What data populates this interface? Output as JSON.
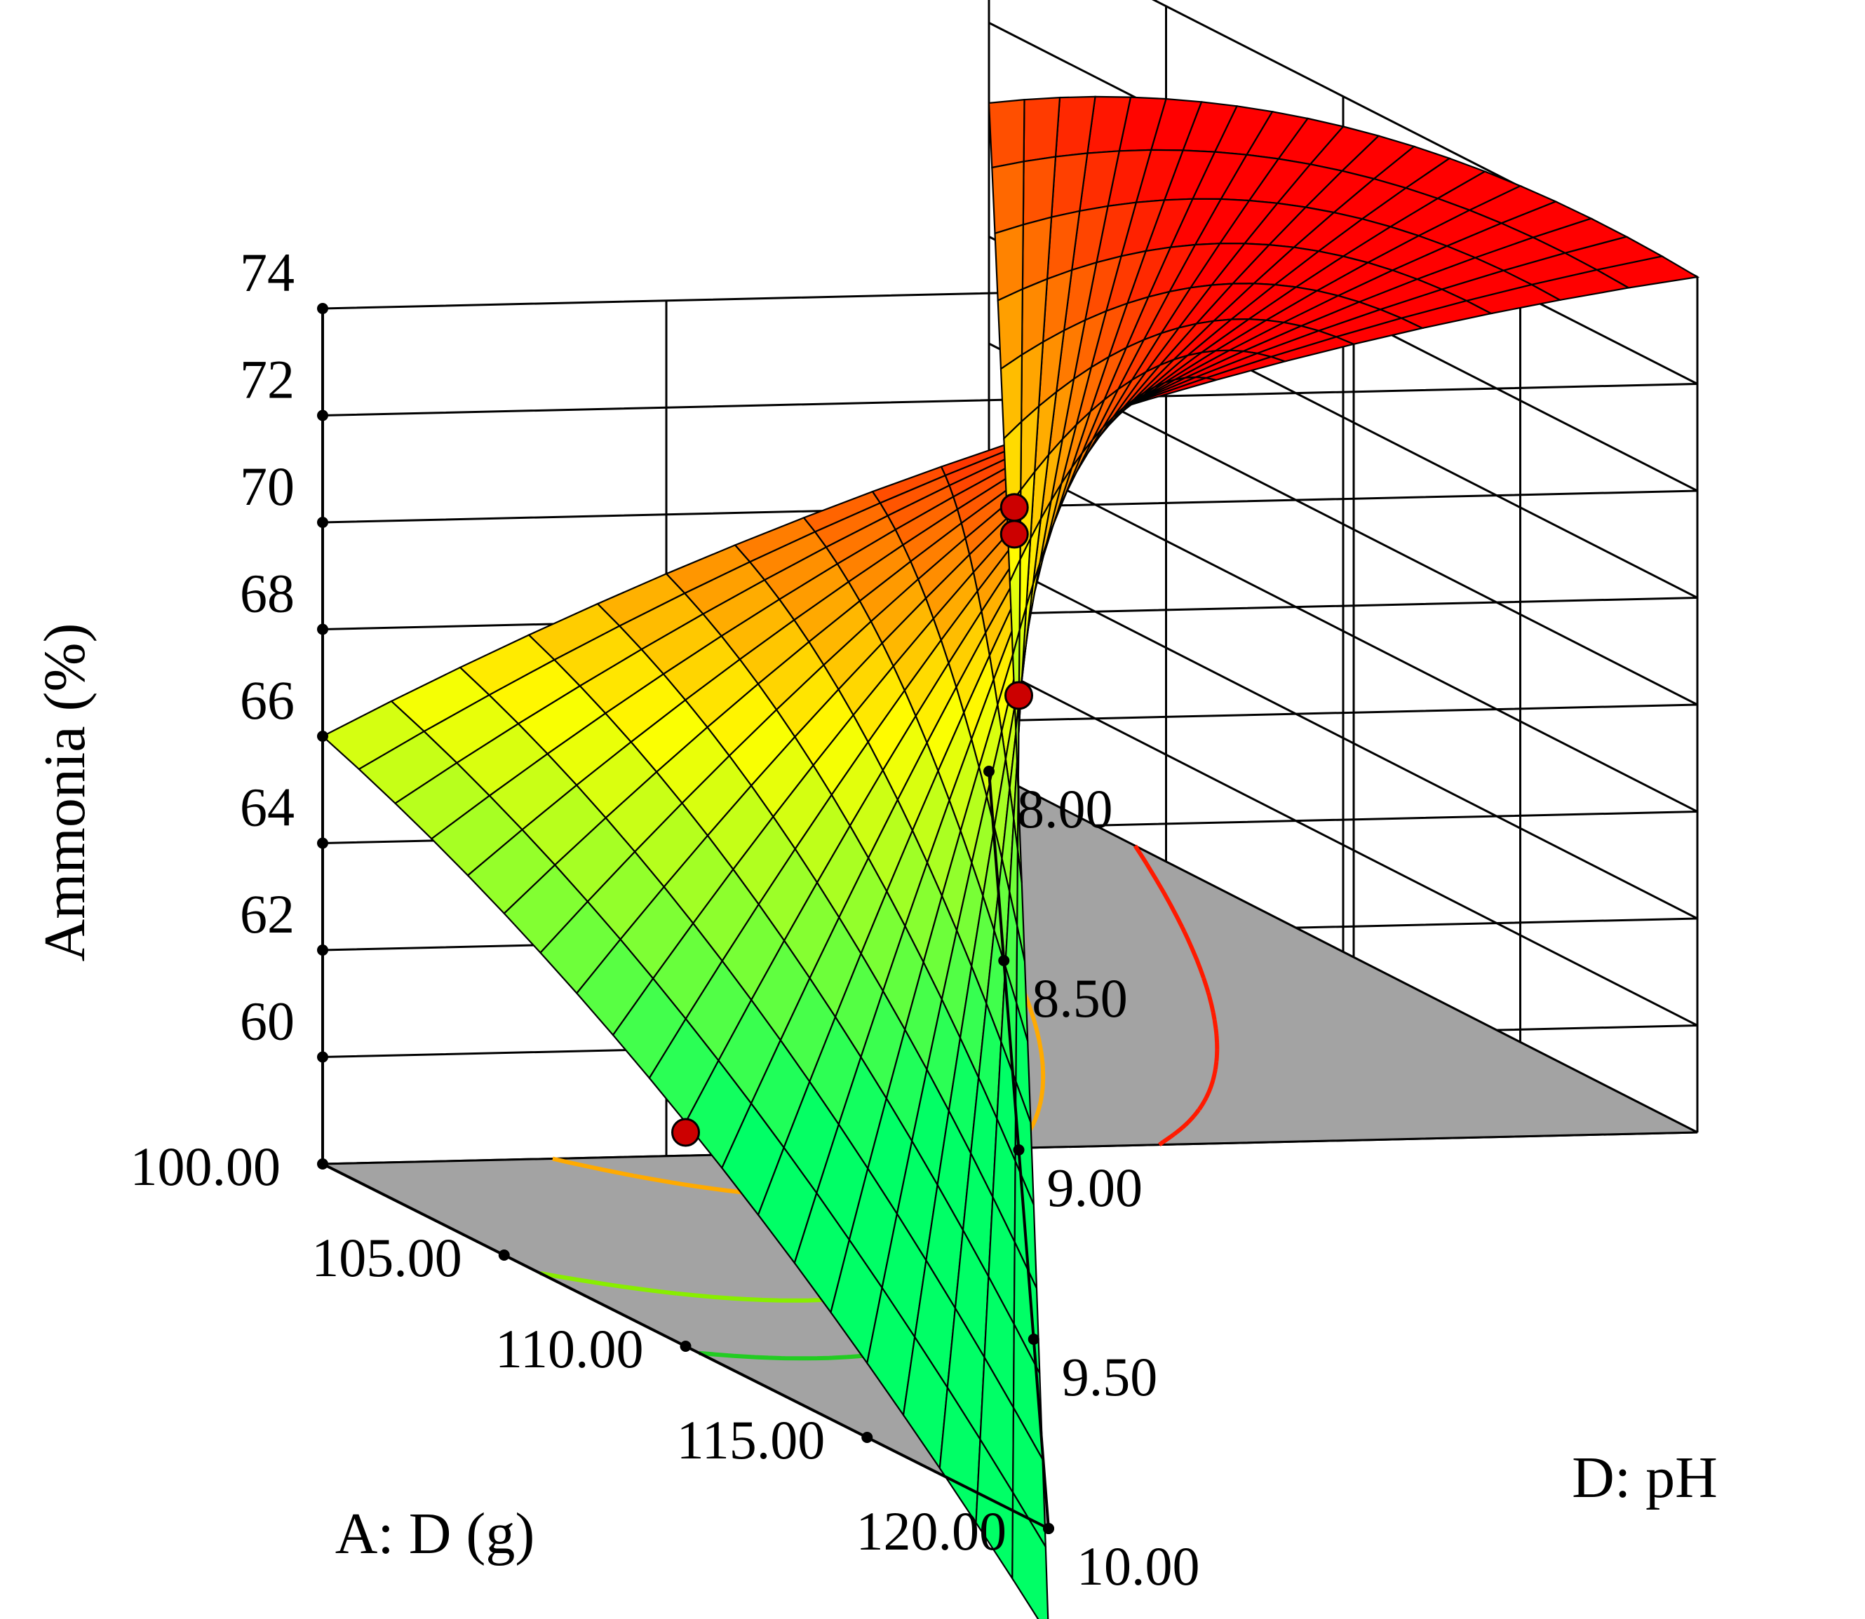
{
  "chart_data": {
    "type": "surface3d",
    "z_label": "Ammonia (%)",
    "x_label": "A: D (g)",
    "y_label": "D: pH",
    "z_ticks": [
      "60",
      "62",
      "64",
      "66",
      "68",
      "70",
      "72",
      "74"
    ],
    "x_ticks": [
      "100.00",
      "105.00",
      "110.00",
      "115.00",
      "120.00"
    ],
    "y_ticks": [
      "8.00",
      "8.50",
      "9.00",
      "9.50",
      "10.00"
    ],
    "x_range": [
      100,
      120
    ],
    "y_range": [
      8,
      10
    ],
    "z_range": [
      58,
      74
    ],
    "corner_values": {
      "x100_y8": 74.0,
      "x120_y8": 70.5,
      "x100_y10": 66.0,
      "x120_y10": 56.0
    },
    "center_value": 69.0,
    "design_points": [
      {
        "x": 110,
        "y": 9.0,
        "z": 70.0
      },
      {
        "x": 110,
        "y": 9.0,
        "z": 69.5
      },
      {
        "x": 110,
        "y": 10.0,
        "z": 62.0
      },
      {
        "x": 120,
        "y": 9.0,
        "z": 66.5
      }
    ],
    "contour_levels": [
      {
        "value": 62,
        "color": "#22cc22"
      },
      {
        "value": 64,
        "color": "#88ee00"
      },
      {
        "value": 68,
        "color": "#ffaa00"
      },
      {
        "value": 72,
        "color": "#ff1a00"
      }
    ],
    "colors": {
      "surface_low": "#00ff66",
      "surface_mid": "#ffff00",
      "surface_high": "#ff0000",
      "floor": "#a3a3a3",
      "points": "#cc0000"
    },
    "grid": true
  }
}
